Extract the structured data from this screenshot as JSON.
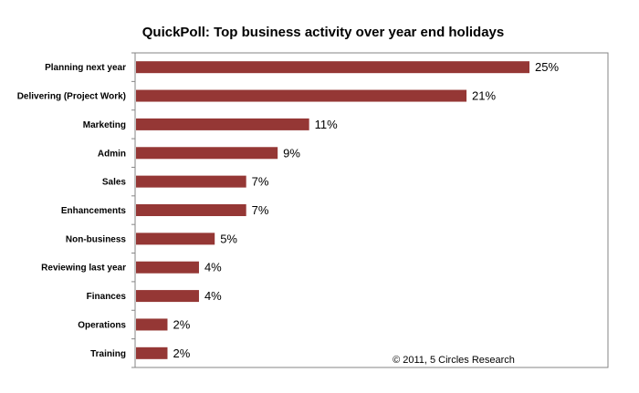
{
  "chart_data": {
    "type": "bar",
    "orientation": "horizontal",
    "title": "QuickPoll: Top business activity over year end holidays",
    "categories": [
      "Planning next year",
      "Delivering (Project Work)",
      "Marketing",
      "Admin",
      "Sales",
      "Enhancements",
      "Non-business",
      "Reviewing last year",
      "Finances",
      "Operations",
      "Training"
    ],
    "values": [
      25,
      21,
      11,
      9,
      7,
      7,
      5,
      4,
      4,
      2,
      2
    ],
    "value_labels": [
      "25%",
      "21%",
      "11%",
      "9%",
      "7%",
      "7%",
      "5%",
      "4%",
      "4%",
      "2%",
      "2%"
    ],
    "xlim": [
      0,
      25
    ],
    "xlabel": "",
    "ylabel": "",
    "grid": false,
    "bar_color": "#953735",
    "footnote": "© 2011, 5 Circles Research"
  }
}
